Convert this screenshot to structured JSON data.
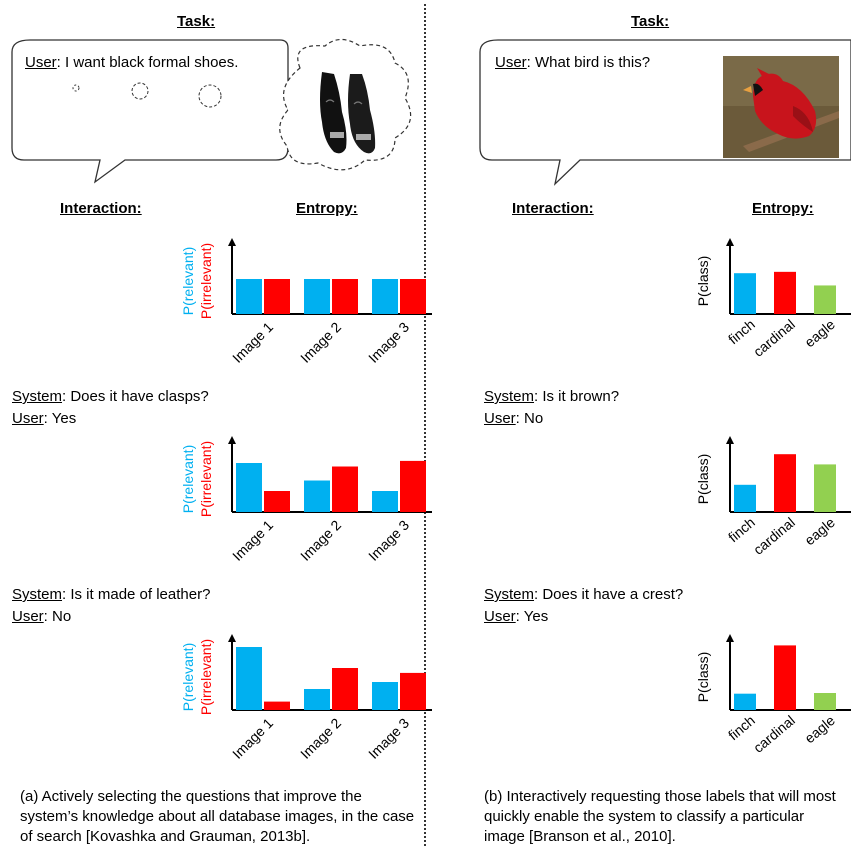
{
  "left": {
    "task_label": "Task:",
    "bubble": {
      "speaker": "User",
      "text": ": I want black formal shoes."
    },
    "image_name": "black-shoes-image",
    "interaction_label": "Interaction:",
    "entropy_label": "Entropy:",
    "ylabel_relevant": "P(relevant)",
    "ylabel_irrelevant": "P(irrelevant)",
    "colors": {
      "relevant": "#00b0f0",
      "irrelevant": "#ff0000"
    },
    "dialog": [
      {
        "system_label": "System",
        "system_text": ": Does it have clasps?",
        "user_label": "User",
        "user_text": ": Yes"
      },
      {
        "system_label": "System",
        "system_text": ": Is it made of leather?",
        "user_label": "User",
        "user_text": ": No"
      }
    ],
    "caption": "(a) Actively selecting the questions that improve the system’s knowledge about all database images, in the case of search [Kovashka and Grauman, 2013b]."
  },
  "right": {
    "task_label": "Task:",
    "bubble": {
      "speaker": "User",
      "text": ": What bird is this?"
    },
    "image_name": "cardinal-bird-image",
    "interaction_label": "Interaction:",
    "entropy_label": "Entropy:",
    "ylabel": "P(class)",
    "colors": {
      "finch": "#00b0f0",
      "cardinal": "#ff0000",
      "eagle": "#92d050"
    },
    "dialog": [
      {
        "system_label": "System",
        "system_text": ": Is it brown?",
        "user_label": "User",
        "user_text": ": No"
      },
      {
        "system_label": "System",
        "system_text": ": Does it have a crest?",
        "user_label": "User",
        "user_text": ": Yes"
      }
    ],
    "caption": "(b) Interactively requesting those labels that will most quickly enable the system to classify a particular image [Branson et al., 2010]."
  },
  "chart_data": [
    {
      "type": "bar",
      "categories": [
        "Image 1",
        "Image 2",
        "Image 3"
      ],
      "series": [
        {
          "name": "P(relevant)",
          "values": [
            0.5,
            0.5,
            0.5
          ]
        },
        {
          "name": "P(irrelevant)",
          "values": [
            0.5,
            0.5,
            0.5
          ]
        }
      ]
    },
    {
      "type": "bar",
      "categories": [
        "Image 1",
        "Image 2",
        "Image 3"
      ],
      "series": [
        {
          "name": "P(relevant)",
          "values": [
            0.7,
            0.45,
            0.3
          ]
        },
        {
          "name": "P(irrelevant)",
          "values": [
            0.3,
            0.65,
            0.73
          ]
        }
      ]
    },
    {
      "type": "bar",
      "categories": [
        "Image 1",
        "Image 2",
        "Image 3"
      ],
      "series": [
        {
          "name": "P(relevant)",
          "values": [
            0.9,
            0.3,
            0.4
          ]
        },
        {
          "name": "P(irrelevant)",
          "values": [
            0.12,
            0.6,
            0.53
          ]
        }
      ]
    },
    {
      "type": "bar",
      "categories": [
        "finch",
        "cardinal",
        "eagle"
      ],
      "series": [
        {
          "name": "P(class)",
          "values": [
            0.6,
            0.62,
            0.42
          ]
        }
      ]
    },
    {
      "type": "bar",
      "categories": [
        "finch",
        "cardinal",
        "eagle"
      ],
      "series": [
        {
          "name": "P(class)",
          "values": [
            0.4,
            0.85,
            0.7
          ]
        }
      ]
    },
    {
      "type": "bar",
      "categories": [
        "finch",
        "cardinal",
        "eagle"
      ],
      "series": [
        {
          "name": "P(class)",
          "values": [
            0.24,
            0.95,
            0.25
          ]
        }
      ]
    }
  ]
}
